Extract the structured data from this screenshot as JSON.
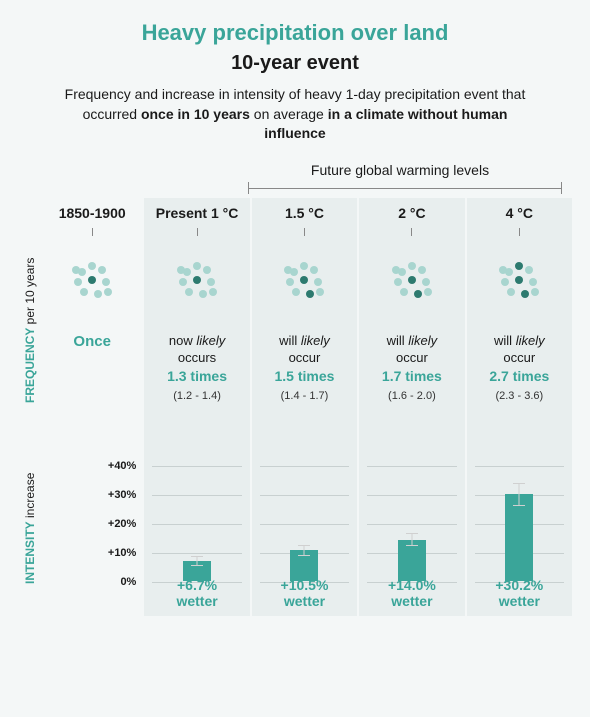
{
  "title": "Heavy precipitation over land",
  "subtitle": "10-year event",
  "description_pre": "Frequency and increase in intensity of heavy 1-day precipitation event that occurred ",
  "description_b1": "once in 10 years",
  "description_mid": " on average ",
  "description_b2": "in a climate without human influence",
  "future_label": "Future global warming levels",
  "y_freq_a": "FREQUENCY",
  "y_freq_b": " per 10 years",
  "y_int_a": "INTENSITY",
  "y_int_b": " increase",
  "intensity_axis": {
    "ymin": 0,
    "ymax": 45,
    "ticks": [
      0,
      10,
      20,
      30,
      40
    ],
    "tick_labels": [
      "0%",
      "+10%",
      "+20%",
      "+30%",
      "+40%"
    ]
  },
  "colors": {
    "accent": "#3aa599",
    "dot_light": "#a8d5cf",
    "dot_dark": "#2d7a6f",
    "panel_bg": "#e8eeee",
    "grid": "#c8d0d0"
  },
  "columns": [
    {
      "header": "1850-1900",
      "shaded": false,
      "dark_dots": 1,
      "freq_label_once": "Once",
      "intensity_value": null,
      "wetter": null
    },
    {
      "header": "Present 1 °C",
      "shaded": true,
      "dark_dots": 1,
      "freq_pre": "now ",
      "freq_em": "likely",
      "freq_post": " occurs",
      "times": "1.3 times",
      "range": "(1.2 - 1.4)",
      "intensity_value": 6.7,
      "intensity_low": 5.0,
      "intensity_high": 8.5,
      "wetter_value": "+6.7%",
      "wetter_word": "wetter"
    },
    {
      "header": "1.5 °C",
      "shaded": true,
      "dark_dots": 2,
      "freq_pre": "will ",
      "freq_em": "likely",
      "freq_post": " occur",
      "times": "1.5 times",
      "range": "(1.4 - 1.7)",
      "intensity_value": 10.5,
      "intensity_low": 8.5,
      "intensity_high": 12.5,
      "wetter_value": "+10.5%",
      "wetter_word": "wetter"
    },
    {
      "header": "2 °C",
      "shaded": true,
      "dark_dots": 2,
      "freq_pre": "will ",
      "freq_em": "likely",
      "freq_post": " occur",
      "times": "1.7 times",
      "range": "(1.6 - 2.0)",
      "intensity_value": 14.0,
      "intensity_low": 12.0,
      "intensity_high": 16.5,
      "wetter_value": "+14.0%",
      "wetter_word": "wetter"
    },
    {
      "header": "4 °C",
      "shaded": true,
      "dark_dots": 3,
      "freq_pre": "will ",
      "freq_em": "likely",
      "freq_post": " occur",
      "times": "2.7 times",
      "range": "(2.3 - 3.6)",
      "intensity_value": 30.2,
      "intensity_low": 26.0,
      "intensity_high": 34.0,
      "wetter_value": "+30.2%",
      "wetter_word": "wetter"
    }
  ]
}
